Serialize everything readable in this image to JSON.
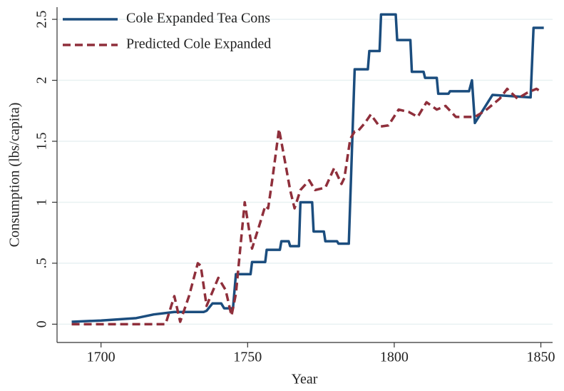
{
  "chart_data": {
    "type": "line",
    "xlabel": "Year",
    "ylabel": "Consumption (lbs/capita)",
    "legend": "upper left",
    "grid": true,
    "xlim": [
      1685,
      1854
    ],
    "ylim": [
      -0.15,
      2.6
    ],
    "xticks": [
      1700,
      1750,
      1800,
      1850
    ],
    "yticks": [
      0,
      {
        "value": 0.5,
        "label": ".5"
      },
      1,
      1.5,
      2,
      2.5
    ],
    "series": [
      {
        "name": "Cole Expanded Tea Cons",
        "color": "#1b4d7e",
        "dash": false,
        "x": [
          1690,
          1700,
          1712,
          1718,
          1725,
          1735,
          1736,
          1738,
          1741,
          1742,
          1745,
          1746,
          1751,
          1751.5,
          1756,
          1756.5,
          1761,
          1761.5,
          1764,
          1764.5,
          1767.5,
          1768,
          1772,
          1772.5,
          1776,
          1776.5,
          1780.5,
          1781,
          1784.5,
          1786.5,
          1791,
          1791.5,
          1795,
          1795.5,
          1800.5,
          1801,
          1805.5,
          1806,
          1810,
          1810.5,
          1814.5,
          1815,
          1818.5,
          1819,
          1825.5,
          1826.5,
          1827.5,
          1833.5,
          1846.5,
          1847.5,
          1851
        ],
        "values": [
          0.02,
          0.03,
          0.05,
          0.08,
          0.1,
          0.1,
          0.11,
          0.17,
          0.17,
          0.13,
          0.13,
          0.41,
          0.41,
          0.51,
          0.51,
          0.61,
          0.61,
          0.68,
          0.68,
          0.64,
          0.64,
          1.0,
          1.0,
          0.76,
          0.76,
          0.68,
          0.68,
          0.66,
          0.66,
          2.09,
          2.09,
          2.24,
          2.24,
          2.54,
          2.54,
          2.33,
          2.33,
          2.07,
          2.07,
          2.02,
          2.02,
          1.89,
          1.89,
          1.91,
          1.91,
          2.0,
          1.65,
          1.88,
          1.86,
          2.43,
          2.43
        ]
      },
      {
        "name": "Predicted Cole Expanded",
        "color": "#8f2f3b",
        "dash": true,
        "x": [
          1690,
          1722,
          1725,
          1727,
          1730,
          1733,
          1734,
          1736,
          1740,
          1742.5,
          1744.5,
          1746,
          1749,
          1751.5,
          1754.5,
          1756,
          1757,
          1758.5,
          1760.7,
          1763,
          1764.5,
          1766,
          1768,
          1771,
          1773,
          1776.5,
          1779.5,
          1782,
          1783,
          1785,
          1786.5,
          1787.5,
          1790,
          1792,
          1795,
          1798,
          1801.5,
          1805,
          1808,
          1811,
          1814.5,
          1817.5,
          1821,
          1827.5,
          1831,
          1836,
          1838.5,
          1842,
          1845.5,
          1848.5,
          1850.5
        ],
        "values": [
          0,
          0,
          0.23,
          0.02,
          0.23,
          0.5,
          0.48,
          0.15,
          0.38,
          0.28,
          0.07,
          0.25,
          1.0,
          0.62,
          0.85,
          0.97,
          0.95,
          1.2,
          1.6,
          1.3,
          1.1,
          0.95,
          1.1,
          1.18,
          1.1,
          1.12,
          1.28,
          1.15,
          1.2,
          1.52,
          1.58,
          1.58,
          1.65,
          1.72,
          1.62,
          1.63,
          1.76,
          1.74,
          1.7,
          1.82,
          1.76,
          1.79,
          1.7,
          1.7,
          1.75,
          1.85,
          1.93,
          1.85,
          1.9,
          1.93,
          1.9
        ]
      }
    ]
  }
}
